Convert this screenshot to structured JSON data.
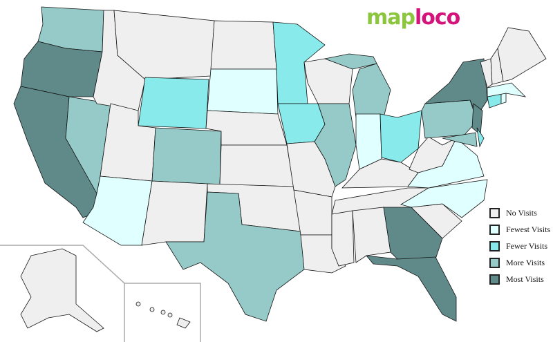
{
  "logo": {
    "part1": "map",
    "part2": "loco"
  },
  "colors": {
    "none": "#efefef",
    "fewest": "#e0ffff",
    "fewer": "#88eaea",
    "more": "#96cac8",
    "most": "#5f8a89"
  },
  "legend": [
    {
      "key": "none",
      "label": "No Visits"
    },
    {
      "key": "fewest",
      "label": "Fewest Visits"
    },
    {
      "key": "fewer",
      "label": "Fewer Visits"
    },
    {
      "key": "more",
      "label": "More Visits"
    },
    {
      "key": "most",
      "label": "Most Visits"
    }
  ],
  "states": {
    "WA": "more",
    "OR": "most",
    "CA": "most",
    "NV": "more",
    "ID": "none",
    "MT": "none",
    "WY": "fewer",
    "UT": "none",
    "AZ": "fewest",
    "CO": "more",
    "NM": "none",
    "ND": "none",
    "SD": "fewest",
    "NE": "none",
    "KS": "none",
    "OK": "none",
    "TX": "more",
    "MN": "fewer",
    "IA": "fewer",
    "MO": "none",
    "AR": "none",
    "LA": "none",
    "WI": "none",
    "IL": "more",
    "MI": "more",
    "IN": "fewest",
    "OH": "fewer",
    "KY": "none",
    "TN": "none",
    "MS": "none",
    "AL": "none",
    "GA": "most",
    "FL": "most",
    "SC": "none",
    "NC": "fewest",
    "VA": "fewest",
    "WV": "none",
    "PA": "more",
    "NY": "most",
    "NJ": "most",
    "MD": "more",
    "DE": "fewer",
    "CT": "fewer",
    "RI": "fewest",
    "MA": "fewest",
    "VT": "none",
    "NH": "none",
    "ME": "none",
    "AK": "none",
    "HI": "none"
  }
}
